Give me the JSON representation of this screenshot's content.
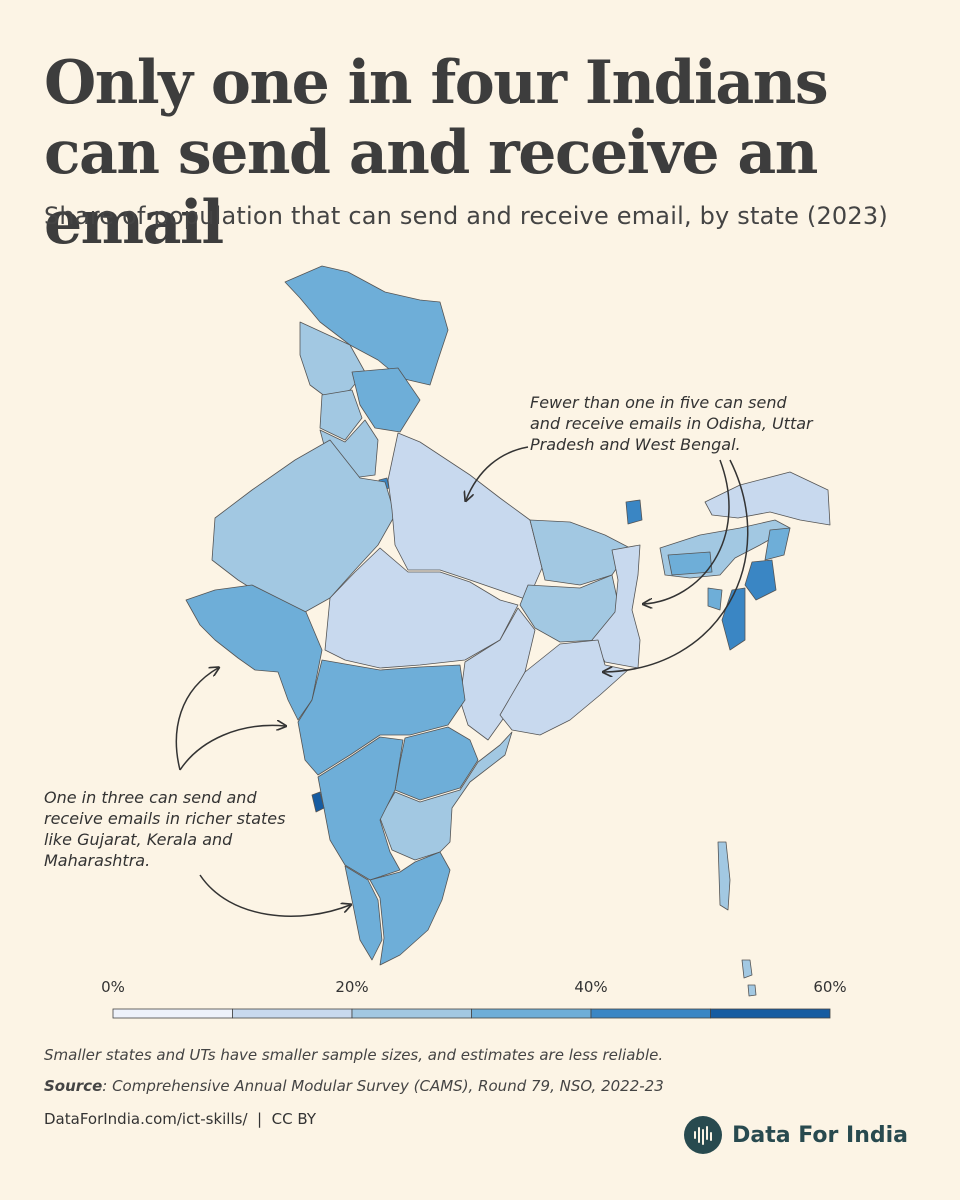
{
  "header": {
    "title": "Only one in four Indians can send and receive an email",
    "subtitle": "Share of population that can send and receive email, by state (2023)"
  },
  "annotations": {
    "top": "Fewer than one in five can send and receive emails in Odisha, Uttar Pradesh and West Bengal.",
    "bottom": "One in three can send and receive emails in richer states like Gujarat, Kerala and Maharashtra."
  },
  "legend": {
    "ticks": [
      "0%",
      "20%",
      "40%",
      "60%"
    ],
    "bins": [
      {
        "from": 0,
        "to": 10,
        "color": "#eef2fa"
      },
      {
        "from": 10,
        "to": 20,
        "color": "#c8d9ee"
      },
      {
        "from": 20,
        "to": 30,
        "color": "#a2c8e2"
      },
      {
        "from": 30,
        "to": 40,
        "color": "#6eaed8"
      },
      {
        "from": 40,
        "to": 50,
        "color": "#3a86c4"
      },
      {
        "from": 50,
        "to": 60,
        "color": "#165ca1"
      }
    ]
  },
  "colors": {
    "background": "#fcf4e5",
    "border": "#555555",
    "brand": "#284a4f"
  },
  "footer": {
    "note": "Smaller states and UTs have smaller sample sizes, and estimates are less reliable.",
    "source_label": "Source",
    "source_text": ": Comprehensive Annual Modular Survey (CAMS), Round 79, NSO, 2022-23",
    "link": "DataForIndia.com/ict-skills/",
    "license": "CC BY",
    "brand": "Data For India",
    "brand_icon": "data-for-india-logo"
  }
}
